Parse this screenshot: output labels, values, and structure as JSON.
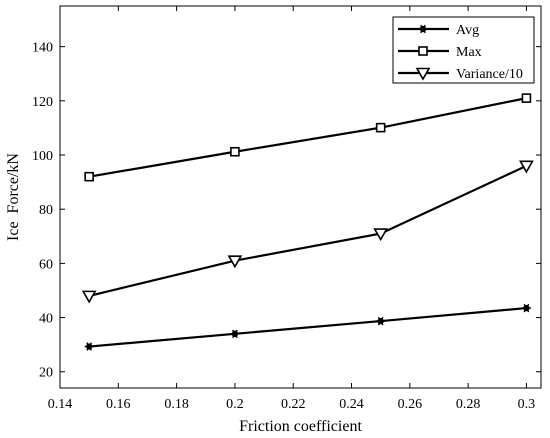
{
  "chart_data": {
    "type": "line",
    "title": "",
    "xlabel": "Friction coefficient",
    "ylabel": "Ice  Force/kN",
    "x": [
      0.15,
      0.2,
      0.25,
      0.3
    ],
    "xlim": [
      0.14,
      0.305
    ],
    "ylim": [
      14,
      155
    ],
    "xticks": [
      0.14,
      0.16,
      0.18,
      0.2,
      0.22,
      0.24,
      0.26,
      0.28,
      0.3
    ],
    "xtick_labels": [
      "0.14",
      "0.16",
      "0.18",
      "0.2",
      "0.22",
      "0.24",
      "0.26",
      "0.28",
      "0.3"
    ],
    "yticks": [
      20,
      40,
      60,
      80,
      100,
      120,
      140
    ],
    "ytick_labels": [
      "20",
      "40",
      "60",
      "80",
      "100",
      "120",
      "140"
    ],
    "grid": false,
    "legend_position": "top-right",
    "series": [
      {
        "name": "Avg",
        "values": [
          29.3,
          34.0,
          38.7,
          43.5
        ],
        "marker": "asterisk",
        "color": "#000000"
      },
      {
        "name": "Max",
        "values": [
          92.0,
          101.2,
          110.1,
          121.0
        ],
        "marker": "square",
        "color": "#000000"
      },
      {
        "name": "Variance/10",
        "values": [
          48.0,
          61.0,
          71.0,
          96.0
        ],
        "marker": "triangle-down",
        "color": "#000000"
      }
    ]
  }
}
